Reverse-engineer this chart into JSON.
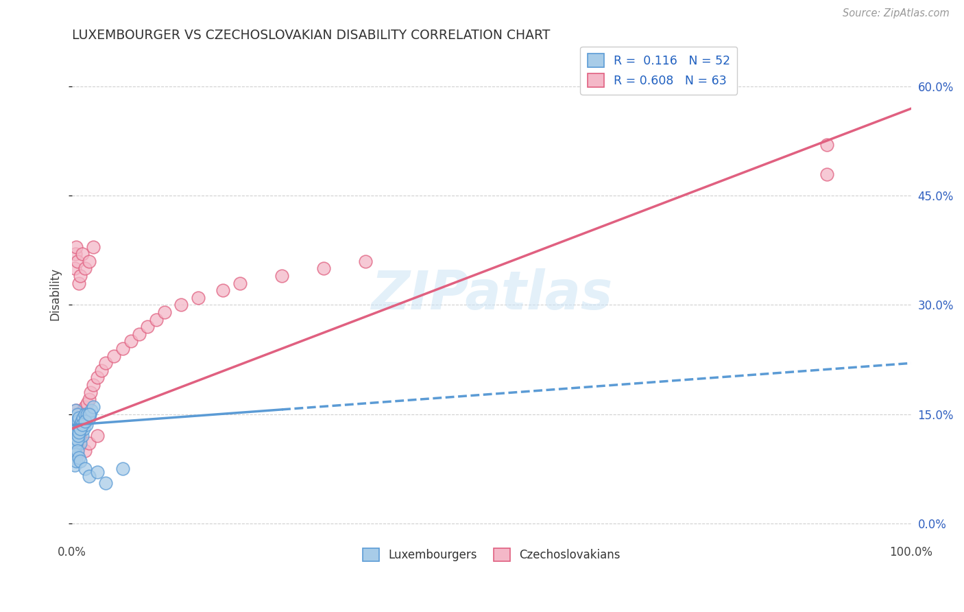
{
  "title": "LUXEMBOURGER VS CZECHOSLOVAKIAN DISABILITY CORRELATION CHART",
  "source": "Source: ZipAtlas.com",
  "watermark": "ZIPatlas",
  "ylabel": "Disability",
  "xlim": [
    0,
    100
  ],
  "ylim": [
    -2,
    65
  ],
  "yticks": [
    0,
    15,
    30,
    45,
    60
  ],
  "ytick_labels": [
    "0.0%",
    "15.0%",
    "30.0%",
    "45.0%",
    "60.0%"
  ],
  "xtick_labels": [
    "0.0%",
    "100.0%"
  ],
  "series1_color": "#a8cce8",
  "series1_edge": "#5b9bd5",
  "series2_color": "#f4b8c8",
  "series2_edge": "#e06080",
  "series1_label": "Luxembourgers",
  "series2_label": "Czechoslovakians",
  "R1": 0.116,
  "N1": 52,
  "R2": 0.608,
  "N2": 63,
  "legend_text_color": "#2060c0",
  "background_color": "#ffffff",
  "grid_color": "#d0d0d0",
  "lux_x": [
    0.2,
    0.3,
    0.3,
    0.4,
    0.4,
    0.4,
    0.5,
    0.5,
    0.5,
    0.6,
    0.6,
    0.7,
    0.7,
    0.8,
    0.8,
    0.9,
    1.0,
    1.0,
    1.1,
    1.2,
    1.3,
    1.4,
    1.5,
    1.6,
    1.7,
    1.8,
    2.0,
    2.1,
    2.3,
    2.5,
    0.3,
    0.4,
    0.5,
    0.6,
    0.7,
    0.8,
    1.0,
    1.2,
    1.5,
    2.0,
    0.2,
    0.3,
    0.4,
    0.5,
    0.6,
    0.8,
    1.0,
    1.5,
    2.0,
    3.0,
    4.0,
    6.0
  ],
  "lux_y": [
    13.5,
    11.0,
    14.5,
    12.0,
    13.0,
    15.5,
    11.5,
    12.5,
    14.0,
    13.5,
    15.0,
    12.0,
    14.0,
    13.0,
    14.5,
    12.5,
    11.0,
    13.5,
    14.0,
    12.0,
    14.5,
    13.0,
    15.0,
    14.0,
    13.5,
    15.0,
    14.5,
    15.0,
    15.5,
    16.0,
    10.0,
    10.5,
    11.0,
    11.5,
    12.0,
    12.5,
    13.0,
    13.5,
    14.0,
    15.0,
    9.0,
    8.0,
    9.5,
    8.5,
    10.0,
    9.0,
    8.5,
    7.5,
    6.5,
    7.0,
    5.5,
    7.5
  ],
  "czecho_x": [
    0.2,
    0.3,
    0.3,
    0.4,
    0.4,
    0.5,
    0.5,
    0.5,
    0.6,
    0.6,
    0.7,
    0.7,
    0.8,
    0.9,
    1.0,
    1.0,
    1.1,
    1.2,
    1.3,
    1.5,
    1.6,
    1.8,
    2.0,
    2.2,
    2.5,
    3.0,
    3.5,
    4.0,
    5.0,
    6.0,
    0.3,
    0.4,
    0.5,
    0.6,
    0.8,
    1.0,
    1.2,
    1.5,
    2.0,
    2.5,
    0.3,
    0.4,
    0.5,
    0.6,
    0.8,
    1.0,
    1.5,
    2.0,
    3.0,
    7.0,
    8.0,
    9.0,
    10.0,
    11.0,
    13.0,
    15.0,
    18.0,
    20.0,
    25.0,
    30.0,
    35.0,
    90.0,
    90.0
  ],
  "czecho_y": [
    13.0,
    12.0,
    15.0,
    11.0,
    14.0,
    12.5,
    13.5,
    15.5,
    12.0,
    14.5,
    13.0,
    15.0,
    14.0,
    13.5,
    12.0,
    14.5,
    15.0,
    14.0,
    15.5,
    16.0,
    15.0,
    16.5,
    17.0,
    18.0,
    19.0,
    20.0,
    21.0,
    22.0,
    23.0,
    24.0,
    35.0,
    37.0,
    38.0,
    36.0,
    33.0,
    34.0,
    37.0,
    35.0,
    36.0,
    38.0,
    9.0,
    10.0,
    11.0,
    9.5,
    10.5,
    11.5,
    10.0,
    11.0,
    12.0,
    25.0,
    26.0,
    27.0,
    28.0,
    29.0,
    30.0,
    31.0,
    32.0,
    33.0,
    34.0,
    35.0,
    36.0,
    52.0,
    48.0
  ],
  "lux_trend_x": [
    0,
    100
  ],
  "lux_trend_y_start": 13.5,
  "lux_trend_y_end": 22.0,
  "czecho_trend_x": [
    0,
    100
  ],
  "czecho_trend_y_start": 13.0,
  "czecho_trend_y_end": 57.0
}
